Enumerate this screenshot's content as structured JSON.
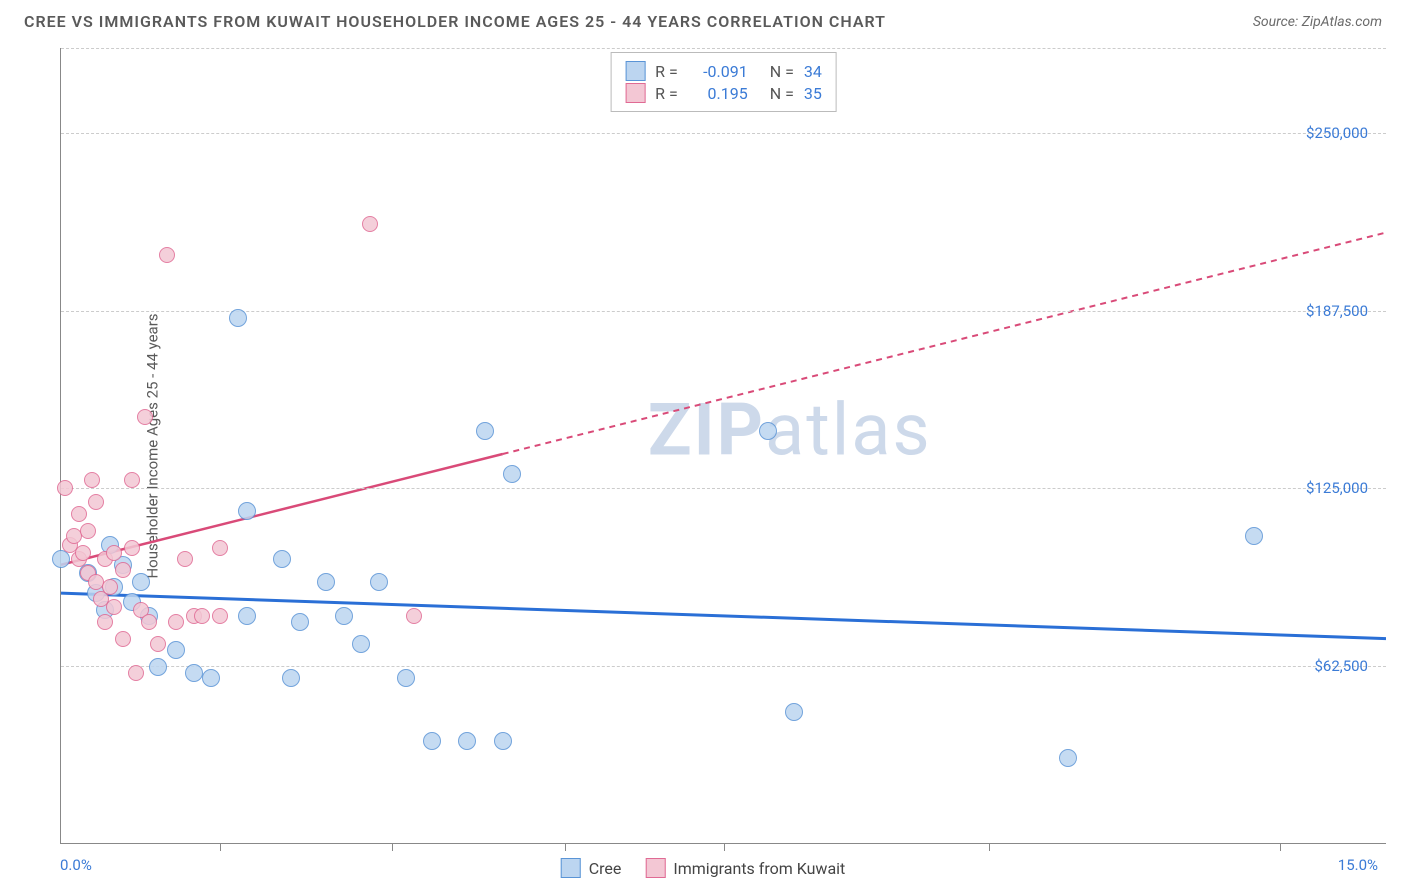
{
  "header": {
    "title": "CREE VS IMMIGRANTS FROM KUWAIT HOUSEHOLDER INCOME AGES 25 - 44 YEARS CORRELATION CHART",
    "source": "Source: ZipAtlas.com"
  },
  "chart": {
    "type": "scatter",
    "ylabel": "Householder Income Ages 25 - 44 years",
    "xlim": [
      0,
      15
    ],
    "ylim": [
      0,
      280000
    ],
    "xaxis_left": "0.0%",
    "xaxis_right": "15.0%",
    "xtick_positions_pct": [
      12,
      25,
      38,
      50,
      70,
      92
    ],
    "yticks": [
      {
        "value": 62500,
        "label": "$62,500"
      },
      {
        "value": 125000,
        "label": "$125,000"
      },
      {
        "value": 187500,
        "label": "$187,500"
      },
      {
        "value": 250000,
        "label": "$250,000"
      }
    ],
    "axis_label_color": "#3b7bd6",
    "grid_color": "#cccccc",
    "background_color": "#ffffff",
    "watermark": {
      "prefix": "ZIP",
      "suffix": "atlas",
      "color": "#cdd9ea"
    },
    "series": [
      {
        "name": "Cree",
        "fill": "#bcd5f0",
        "stroke": "#5a94d6",
        "trend_color": "#2a6fd6",
        "trend_width": 3,
        "trend_dash": "none",
        "R": "-0.091",
        "N": "34",
        "trend": {
          "x1": 0,
          "y1": 88000,
          "x2": 15,
          "y2": 72000
        },
        "points": [
          [
            0.0,
            100000
          ],
          [
            0.3,
            95000
          ],
          [
            0.4,
            88000
          ],
          [
            0.5,
            82000
          ],
          [
            0.55,
            105000
          ],
          [
            0.6,
            90000
          ],
          [
            0.7,
            98000
          ],
          [
            0.8,
            85000
          ],
          [
            0.9,
            92000
          ],
          [
            1.0,
            80000
          ],
          [
            1.1,
            62000
          ],
          [
            1.3,
            68000
          ],
          [
            1.5,
            60000
          ],
          [
            1.7,
            58000
          ],
          [
            2.0,
            185000
          ],
          [
            2.1,
            117000
          ],
          [
            2.1,
            80000
          ],
          [
            2.5,
            100000
          ],
          [
            2.6,
            58000
          ],
          [
            2.7,
            78000
          ],
          [
            3.0,
            92000
          ],
          [
            3.2,
            80000
          ],
          [
            3.4,
            70000
          ],
          [
            3.6,
            92000
          ],
          [
            3.9,
            58000
          ],
          [
            4.2,
            36000
          ],
          [
            4.6,
            36000
          ],
          [
            4.8,
            145000
          ],
          [
            5.0,
            36000
          ],
          [
            5.1,
            130000
          ],
          [
            8.0,
            145000
          ],
          [
            8.3,
            46000
          ],
          [
            11.4,
            30000
          ],
          [
            13.5,
            108000
          ]
        ]
      },
      {
        "name": "Immigants from Kuwait",
        "fill": "#f3c7d4",
        "stroke": "#e06a94",
        "trend_color": "#d94a78",
        "trend_width": 2.5,
        "trend_dash": "solid_then_dashed",
        "trend_solid_end_x": 5.0,
        "R": "0.195",
        "N": "35",
        "trend": {
          "x1": 0,
          "y1": 98000,
          "x2": 15,
          "y2": 215000
        },
        "points": [
          [
            0.05,
            125000
          ],
          [
            0.1,
            105000
          ],
          [
            0.15,
            108000
          ],
          [
            0.2,
            116000
          ],
          [
            0.2,
            100000
          ],
          [
            0.25,
            102000
          ],
          [
            0.3,
            95000
          ],
          [
            0.3,
            110000
          ],
          [
            0.35,
            128000
          ],
          [
            0.4,
            92000
          ],
          [
            0.4,
            120000
          ],
          [
            0.45,
            86000
          ],
          [
            0.5,
            100000
          ],
          [
            0.5,
            78000
          ],
          [
            0.55,
            90000
          ],
          [
            0.6,
            102000
          ],
          [
            0.6,
            83000
          ],
          [
            0.7,
            96000
          ],
          [
            0.7,
            72000
          ],
          [
            0.8,
            104000
          ],
          [
            0.8,
            128000
          ],
          [
            0.85,
            60000
          ],
          [
            0.9,
            82000
          ],
          [
            0.95,
            150000
          ],
          [
            1.0,
            78000
          ],
          [
            1.1,
            70000
          ],
          [
            1.2,
            207000
          ],
          [
            1.3,
            78000
          ],
          [
            1.4,
            100000
          ],
          [
            1.5,
            80000
          ],
          [
            1.6,
            80000
          ],
          [
            1.8,
            80000
          ],
          [
            1.8,
            104000
          ],
          [
            3.5,
            218000
          ],
          [
            4.0,
            80000
          ]
        ]
      }
    ],
    "legend_top_labels": {
      "R_prefix": "R =",
      "N_prefix": "N ="
    },
    "legend_bottom": [
      {
        "label": "Cree",
        "series_index": 0
      },
      {
        "label": "Immigrants from Kuwait",
        "series_index": 1
      }
    ]
  }
}
